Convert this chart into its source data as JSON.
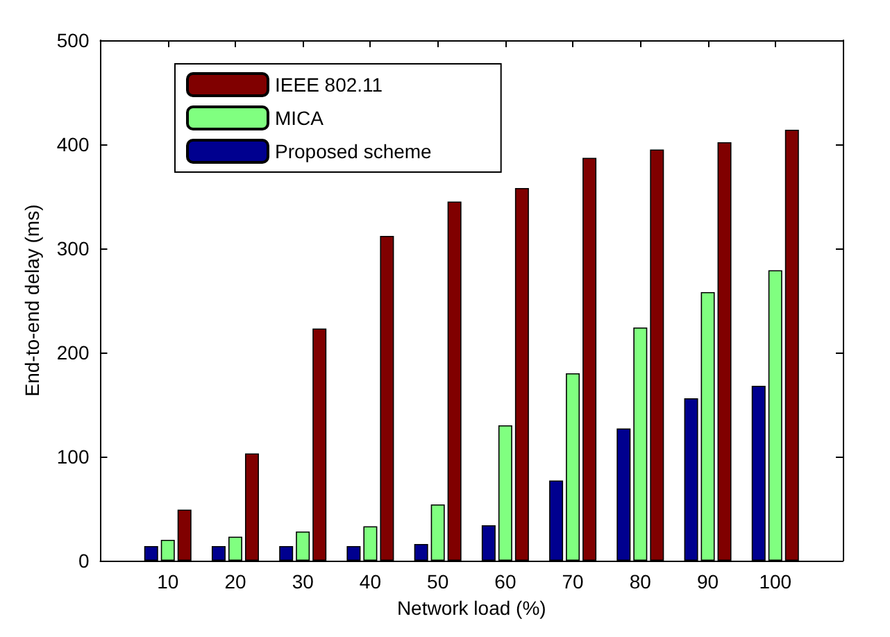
{
  "chart_data": {
    "type": "bar",
    "xlabel": "Network load (%)",
    "ylabel": "End-to-end delay (ms)",
    "x": [
      10,
      20,
      30,
      40,
      50,
      60,
      70,
      80,
      90,
      100
    ],
    "xlim": [
      0,
      110
    ],
    "xticks": [
      10,
      20,
      30,
      40,
      50,
      60,
      70,
      80,
      90,
      100
    ],
    "ylim": [
      0,
      500
    ],
    "yticks": [
      0,
      100,
      200,
      300,
      400,
      500
    ],
    "legend": "top left",
    "grid": false,
    "series": [
      {
        "name": "IEEE 802.11",
        "color": "#800000",
        "values": [
          49,
          103,
          223,
          312,
          345,
          358,
          387,
          395,
          402,
          414
        ]
      },
      {
        "name": "MICA",
        "color": "#80ff80",
        "values": [
          20,
          23,
          28,
          33,
          54,
          130,
          180,
          224,
          258,
          279
        ]
      },
      {
        "name": "Proposed scheme",
        "color": "#00008f",
        "values": [
          14,
          14,
          14,
          14,
          16,
          34,
          77,
          127,
          156,
          168
        ]
      }
    ]
  }
}
